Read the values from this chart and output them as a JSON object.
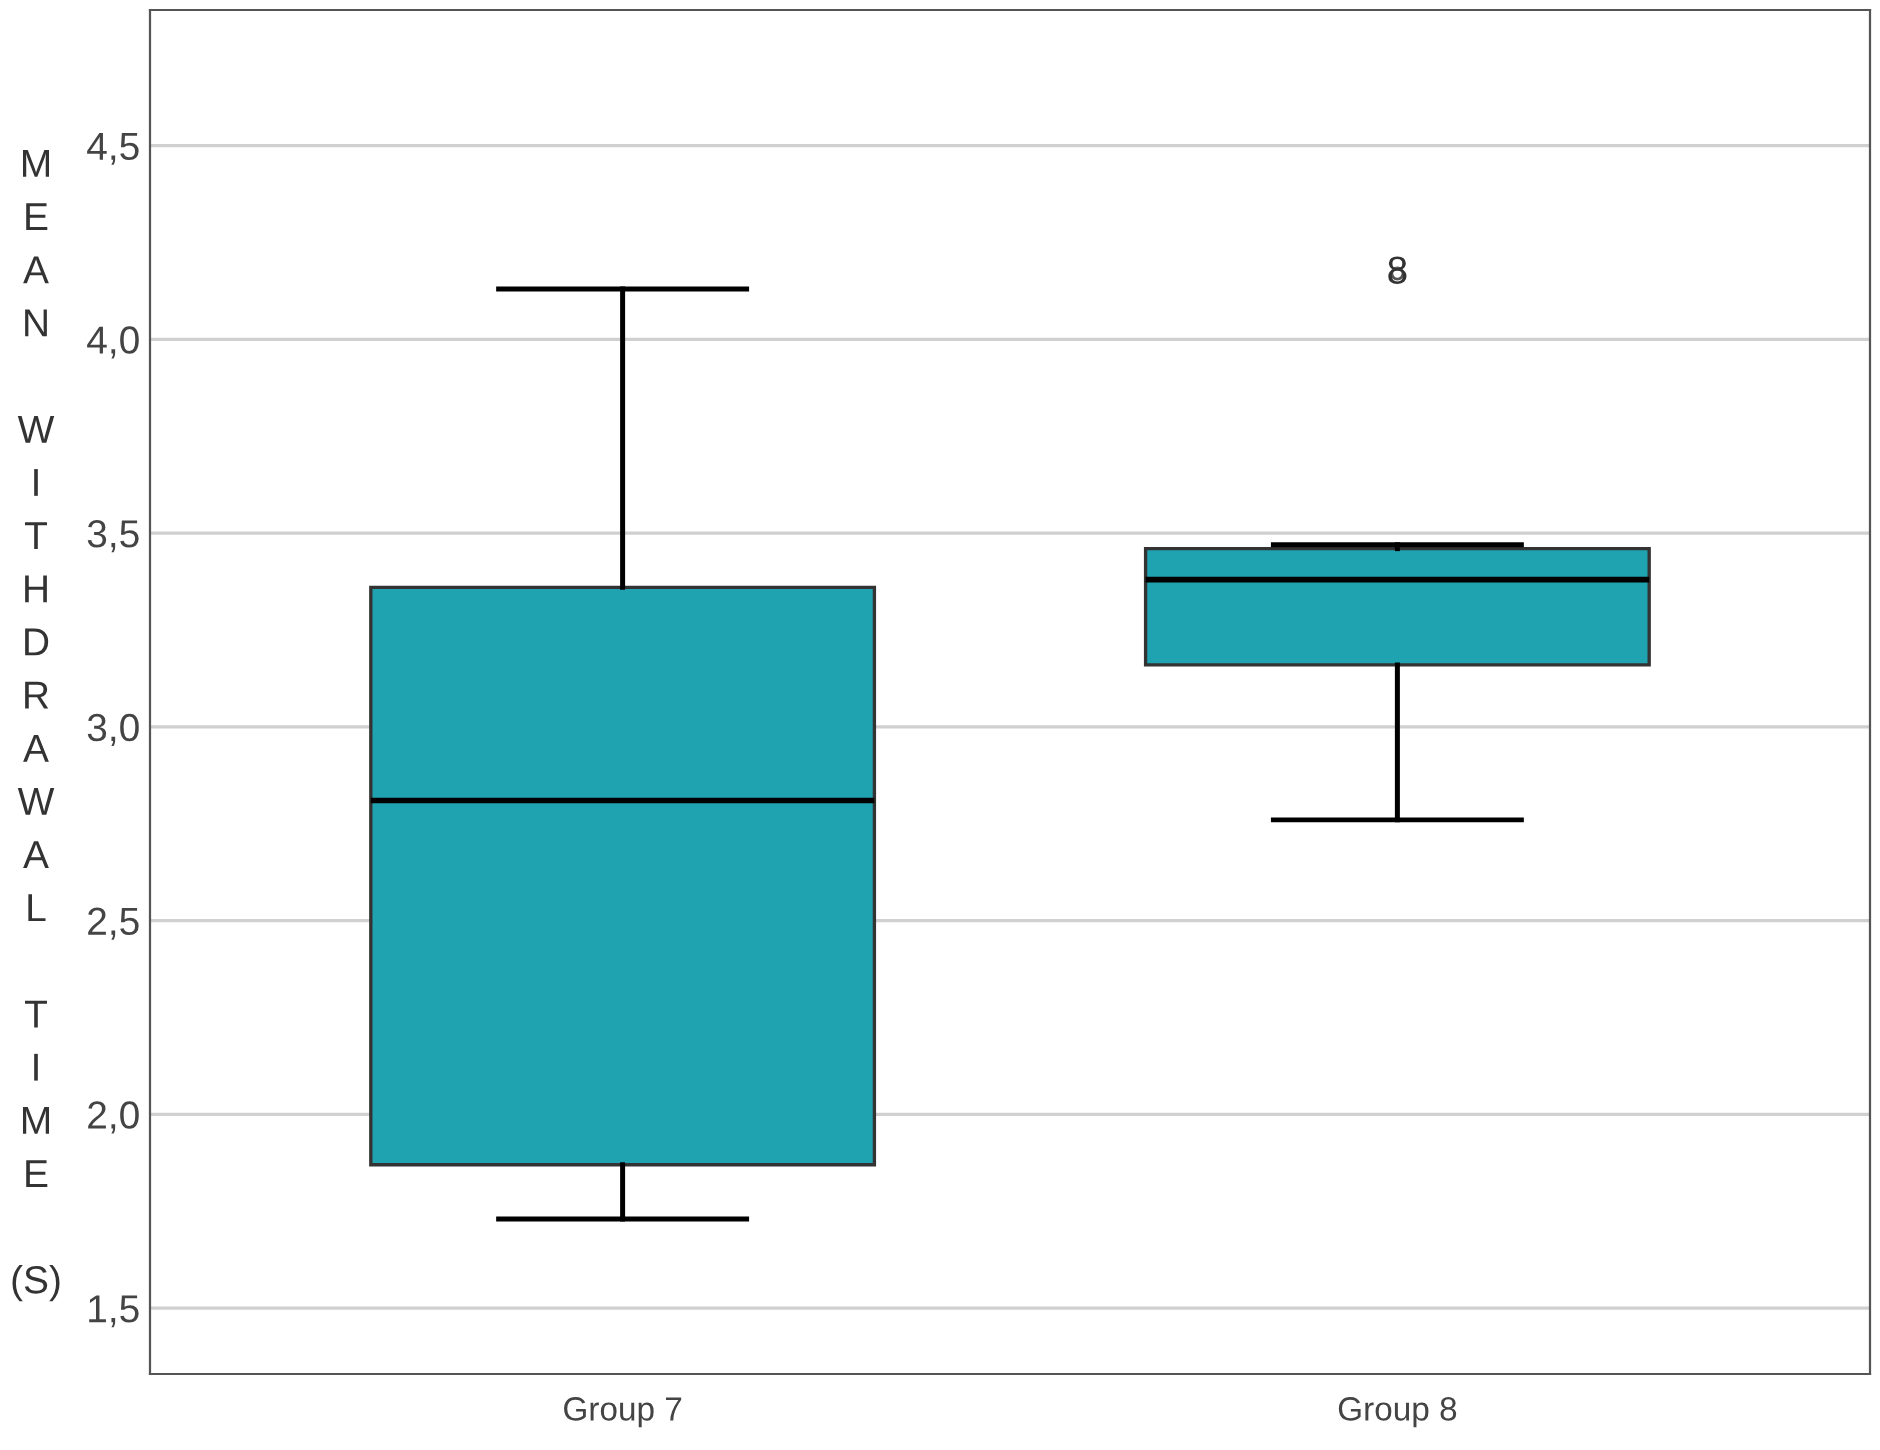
{
  "chart_data": {
    "type": "box",
    "ylabel": "MEAN WITHDRAWAL TIME (S)",
    "categories": [
      "Group 7",
      "Group 8"
    ],
    "boxes": [
      {
        "low": 1.73,
        "q1": 1.87,
        "median": 2.81,
        "q3": 3.36,
        "high": 4.13
      },
      {
        "low": 2.76,
        "q1": 3.16,
        "median": 3.38,
        "q3": 3.46,
        "high": 3.47,
        "outliers": [
          4.17
        ]
      }
    ],
    "color": "#20a3b0",
    "ylim": [
      1.33,
      4.85
    ],
    "yticks": [
      {
        "value": 1.5,
        "label": "1,5"
      },
      {
        "value": 2.0,
        "label": "2,0"
      },
      {
        "value": 2.5,
        "label": "2,5"
      },
      {
        "value": 3.0,
        "label": "3,0"
      },
      {
        "value": 3.5,
        "label": "3,5"
      },
      {
        "value": 4.0,
        "label": "4,0"
      },
      {
        "value": 4.5,
        "label": "4,5"
      }
    ],
    "grid": "y",
    "annotations": [
      "8"
    ]
  }
}
